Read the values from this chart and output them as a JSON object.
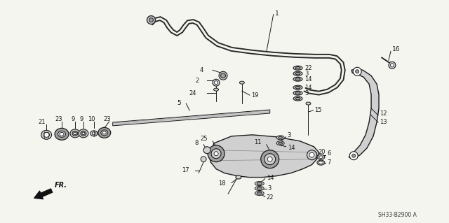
{
  "background_color": "#f5f5f0",
  "diagram_code": "SH33-B2900 A",
  "direction_label": "FR.",
  "line_color": "#1a1a1a",
  "bar_color": "#2a2a2a",
  "part_color_light": "#d0d0d0",
  "part_color_mid": "#a0a0a0"
}
